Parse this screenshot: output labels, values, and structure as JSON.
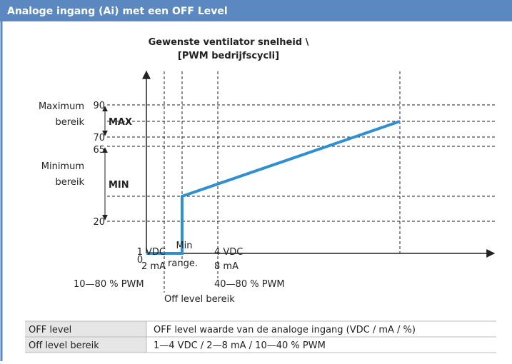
{
  "header": {
    "title": "Analoge ingang (Ai) met een OFF Level"
  },
  "diagram": {
    "axis_title": [
      "Gewenste ventilator snelheid \\",
      "[PWM bedrijfscycli]"
    ],
    "y_labels": [
      "90",
      "70",
      "65",
      "20",
      "0"
    ],
    "ranges": {
      "max_label": [
        "Maximum",
        "bereik"
      ],
      "max": "MAX",
      "min_label": [
        "Minimum",
        "bereik"
      ],
      "min": "MIN"
    },
    "x_labels": {
      "start": [
        "1 VDC",
        "2 mA",
        "10—80 % PWM"
      ],
      "min_range": [
        "Min",
        "range."
      ],
      "end": [
        "4 VDC",
        "8 mA",
        "40—80 % PWM"
      ],
      "off_level": "Off level bereik"
    }
  },
  "table": {
    "rows": [
      [
        "OFF level",
        "OFF level waarde van de analoge ingang (VDC / mA / %)"
      ],
      [
        "Off level bereik",
        "1—4 VDC / 2—8 mA / 10—40 % PWM"
      ]
    ]
  }
}
